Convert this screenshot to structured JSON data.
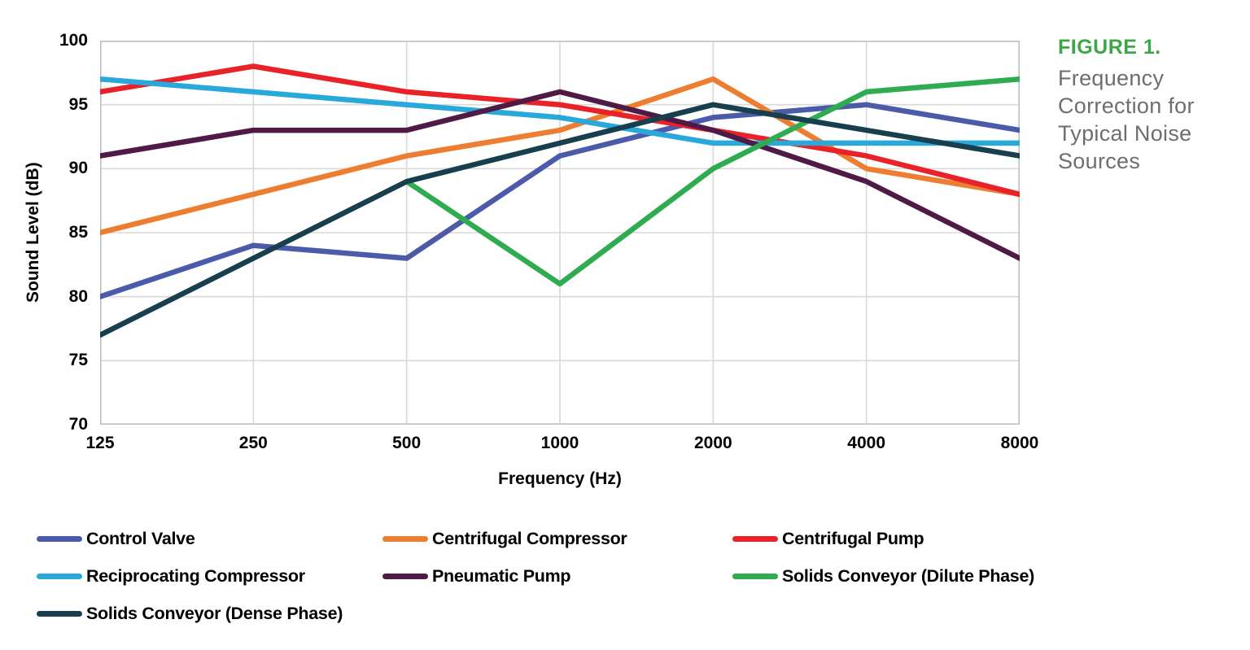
{
  "figure": {
    "caption_title": "FIGURE 1.",
    "caption_text": "Frequency Correction for Typical Noise Sources",
    "caption_title_color": "#3EA648",
    "caption_text_color": "#6D6E70"
  },
  "chart_data": {
    "type": "line",
    "title": "",
    "xlabel": "Frequency (Hz)",
    "ylabel": "Sound Level (dB)",
    "categories": [
      "125",
      "250",
      "500",
      "1000",
      "2000",
      "4000",
      "8000"
    ],
    "ylim": [
      70,
      100
    ],
    "yticks": [
      100,
      95,
      90,
      85,
      80,
      75,
      70
    ],
    "grid": true,
    "gridline_color": "#D9D9D9",
    "border_color": "#BFBFBF",
    "legend_position": "bottom",
    "series": [
      {
        "name": "Control Valve",
        "color": "#4C5BA9",
        "values": [
          80,
          84,
          83,
          91,
          94,
          95,
          93
        ]
      },
      {
        "name": "Centrifugal Compressor",
        "color": "#ED7D31",
        "values": [
          85,
          88,
          91,
          93,
          97,
          90,
          88
        ]
      },
      {
        "name": "Centrifugal Pump",
        "color": "#E82228",
        "values": [
          96,
          98,
          96,
          95,
          93,
          91,
          88
        ]
      },
      {
        "name": "Reciprocating Compressor",
        "color": "#29A8DC",
        "values": [
          97,
          96,
          95,
          94,
          92,
          92,
          92
        ]
      },
      {
        "name": "Pneumatic Pump",
        "color": "#4F1A45",
        "values": [
          91,
          93,
          93,
          96,
          93,
          89,
          83
        ]
      },
      {
        "name": "Solids Conveyor (Dilute Phase)",
        "color": "#2FAC4F",
        "values": [
          null,
          null,
          89,
          81,
          90,
          96,
          97
        ]
      },
      {
        "name": "Solids Conveyor (Dense Phase)",
        "color": "#173F4E",
        "values": [
          77,
          83,
          89,
          92,
          95,
          93,
          91
        ]
      }
    ]
  }
}
